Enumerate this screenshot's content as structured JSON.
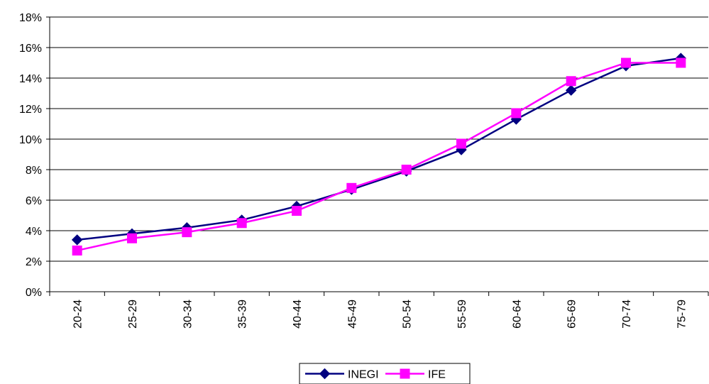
{
  "chart_data": {
    "type": "line",
    "title": "",
    "xlabel": "",
    "ylabel": "",
    "categories": [
      "20-24",
      "25-29",
      "30-34",
      "35-39",
      "40-44",
      "45-49",
      "50-54",
      "55-59",
      "60-64",
      "65-69",
      "70-74",
      "75-79"
    ],
    "series": [
      {
        "name": "INEGI",
        "color": "#000080",
        "marker": "diamond",
        "values": [
          3.4,
          3.8,
          4.2,
          4.7,
          5.6,
          6.7,
          7.9,
          9.3,
          11.3,
          13.2,
          14.8,
          15.3
        ]
      },
      {
        "name": "IFE",
        "color": "#FF00FF",
        "marker": "square",
        "values": [
          2.7,
          3.5,
          3.9,
          4.5,
          5.3,
          6.8,
          8.0,
          9.7,
          11.7,
          13.8,
          15.0,
          15.0
        ]
      }
    ],
    "ylim": [
      0,
      18
    ],
    "yticks": [
      0,
      2,
      4,
      6,
      8,
      10,
      12,
      14,
      16,
      18
    ],
    "ytick_labels": [
      "0%",
      "2%",
      "4%",
      "6%",
      "8%",
      "10%",
      "12%",
      "14%",
      "16%",
      "18%"
    ],
    "grid": "horizontal",
    "legend_position": "bottom"
  }
}
